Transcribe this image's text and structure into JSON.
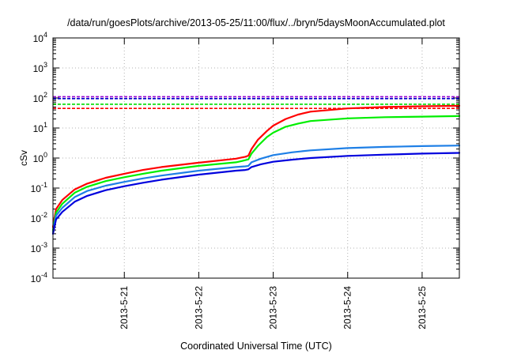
{
  "chart_data": {
    "type": "line",
    "title": "/data/run/goesPlots/archive/2013-05-25/11:00/flux/../bryn/5daysMoonAccumulated.plot",
    "xlabel": "Coordinated Universal Time (UTC)",
    "ylabel": "cSv",
    "x_scale": "time",
    "xlim": [
      "2013-05-20 01:00",
      "2013-05-25 12:00"
    ],
    "x_ticks": [
      "2013-5-21",
      "2013-5-22",
      "2013-5-23",
      "2013-5-24",
      "2013-5-25"
    ],
    "y_scale": "log",
    "ylim": [
      0.0001,
      10000
    ],
    "y_ticks": [
      {
        "value": 0.0001,
        "base": "10",
        "exp": "-4"
      },
      {
        "value": 0.001,
        "base": "10",
        "exp": "-3"
      },
      {
        "value": 0.01,
        "base": "10",
        "exp": "-2"
      },
      {
        "value": 0.1,
        "base": "10",
        "exp": "-1"
      },
      {
        "value": 1,
        "base": "10",
        "exp": "0"
      },
      {
        "value": 10,
        "base": "10",
        "exp": "1"
      },
      {
        "value": 100,
        "base": "10",
        "exp": "2"
      },
      {
        "value": 1000,
        "base": "10",
        "exp": "3"
      },
      {
        "value": 10000,
        "base": "10",
        "exp": "4"
      }
    ],
    "grid": true,
    "series": [
      {
        "color": "#ff0000",
        "points": [
          [
            "2013-05-20 01:00",
            0.005
          ],
          [
            "2013-05-20 02:00",
            0.02
          ],
          [
            "2013-05-20 04:00",
            0.04
          ],
          [
            "2013-05-20 08:00",
            0.09
          ],
          [
            "2013-05-20 12:00",
            0.14
          ],
          [
            "2013-05-20 18:00",
            0.22
          ],
          [
            "2013-05-21 00:00",
            0.3
          ],
          [
            "2013-05-21 06:00",
            0.4
          ],
          [
            "2013-05-21 12:00",
            0.5
          ],
          [
            "2013-05-22 00:00",
            0.7
          ],
          [
            "2013-05-22 12:00",
            0.95
          ],
          [
            "2013-05-22 14:00",
            1.05
          ],
          [
            "2013-05-22 15:00",
            1.1
          ],
          [
            "2013-05-22 16:00",
            1.2
          ],
          [
            "2013-05-22 17:00",
            2.0
          ],
          [
            "2013-05-22 19:00",
            4.0
          ],
          [
            "2013-05-22 22:00",
            8.0
          ],
          [
            "2013-05-23 00:00",
            12
          ],
          [
            "2013-05-23 04:00",
            20
          ],
          [
            "2013-05-23 08:00",
            28
          ],
          [
            "2013-05-23 12:00",
            35
          ],
          [
            "2013-05-24 00:00",
            45
          ],
          [
            "2013-05-24 12:00",
            50
          ],
          [
            "2013-05-25 00:00",
            53
          ],
          [
            "2013-05-25 12:00",
            55
          ]
        ]
      },
      {
        "color": "#00ee00",
        "points": [
          [
            "2013-05-20 01:00",
            0.004
          ],
          [
            "2013-05-20 02:00",
            0.015
          ],
          [
            "2013-05-20 04:00",
            0.03
          ],
          [
            "2013-05-20 08:00",
            0.07
          ],
          [
            "2013-05-20 12:00",
            0.11
          ],
          [
            "2013-05-20 18:00",
            0.17
          ],
          [
            "2013-05-21 00:00",
            0.23
          ],
          [
            "2013-05-21 06:00",
            0.3
          ],
          [
            "2013-05-21 12:00",
            0.38
          ],
          [
            "2013-05-22 00:00",
            0.55
          ],
          [
            "2013-05-22 12:00",
            0.72
          ],
          [
            "2013-05-22 14:00",
            0.8
          ],
          [
            "2013-05-22 15:00",
            0.85
          ],
          [
            "2013-05-22 16:00",
            0.9
          ],
          [
            "2013-05-22 17:00",
            1.4
          ],
          [
            "2013-05-22 19:00",
            2.5
          ],
          [
            "2013-05-22 22:00",
            5.0
          ],
          [
            "2013-05-23 00:00",
            7.0
          ],
          [
            "2013-05-23 04:00",
            11
          ],
          [
            "2013-05-23 08:00",
            14
          ],
          [
            "2013-05-23 12:00",
            17
          ],
          [
            "2013-05-24 00:00",
            21
          ],
          [
            "2013-05-24 12:00",
            23
          ],
          [
            "2013-05-25 00:00",
            24
          ],
          [
            "2013-05-25 12:00",
            25
          ]
        ]
      },
      {
        "color": "#1e7fe6",
        "points": [
          [
            "2013-05-20 01:00",
            0.0035
          ],
          [
            "2013-05-20 02:00",
            0.012
          ],
          [
            "2013-05-20 04:00",
            0.022
          ],
          [
            "2013-05-20 08:00",
            0.05
          ],
          [
            "2013-05-20 12:00",
            0.08
          ],
          [
            "2013-05-20 18:00",
            0.12
          ],
          [
            "2013-05-21 00:00",
            0.16
          ],
          [
            "2013-05-21 06:00",
            0.21
          ],
          [
            "2013-05-21 12:00",
            0.26
          ],
          [
            "2013-05-22 00:00",
            0.38
          ],
          [
            "2013-05-22 12:00",
            0.5
          ],
          [
            "2013-05-22 15:00",
            0.53
          ],
          [
            "2013-05-22 16:00",
            0.55
          ],
          [
            "2013-05-22 17:00",
            0.72
          ],
          [
            "2013-05-22 20:00",
            0.95
          ],
          [
            "2013-05-23 00:00",
            1.25
          ],
          [
            "2013-05-23 06:00",
            1.55
          ],
          [
            "2013-05-23 12:00",
            1.8
          ],
          [
            "2013-05-24 00:00",
            2.15
          ],
          [
            "2013-05-24 12:00",
            2.35
          ],
          [
            "2013-05-25 00:00",
            2.5
          ],
          [
            "2013-05-25 12:00",
            2.6
          ]
        ]
      },
      {
        "color": "#0000dd",
        "points": [
          [
            "2013-05-20 01:00",
            0.003
          ],
          [
            "2013-05-20 02:00",
            0.009
          ],
          [
            "2013-05-20 04:00",
            0.016
          ],
          [
            "2013-05-20 08:00",
            0.035
          ],
          [
            "2013-05-20 12:00",
            0.055
          ],
          [
            "2013-05-20 18:00",
            0.085
          ],
          [
            "2013-05-21 00:00",
            0.115
          ],
          [
            "2013-05-21 06:00",
            0.15
          ],
          [
            "2013-05-21 12:00",
            0.19
          ],
          [
            "2013-05-22 00:00",
            0.28
          ],
          [
            "2013-05-22 12:00",
            0.38
          ],
          [
            "2013-05-22 15:00",
            0.4
          ],
          [
            "2013-05-22 16:00",
            0.42
          ],
          [
            "2013-05-22 17:00",
            0.5
          ],
          [
            "2013-05-22 20:00",
            0.62
          ],
          [
            "2013-05-23 00:00",
            0.75
          ],
          [
            "2013-05-23 06:00",
            0.88
          ],
          [
            "2013-05-23 12:00",
            1.0
          ],
          [
            "2013-05-24 00:00",
            1.18
          ],
          [
            "2013-05-24 12:00",
            1.3
          ],
          [
            "2013-05-25 00:00",
            1.4
          ],
          [
            "2013-05-25 12:00",
            1.48
          ]
        ]
      }
    ],
    "reference_lines": [
      {
        "value": 110,
        "color": "#9400d3",
        "style": "dashed"
      },
      {
        "value": 95,
        "color": "#0000cc",
        "style": "dashed"
      },
      {
        "value": 62,
        "color": "#00dd00",
        "style": "dashed"
      },
      {
        "value": 45,
        "color": "#ff0000",
        "style": "dashed"
      }
    ]
  }
}
